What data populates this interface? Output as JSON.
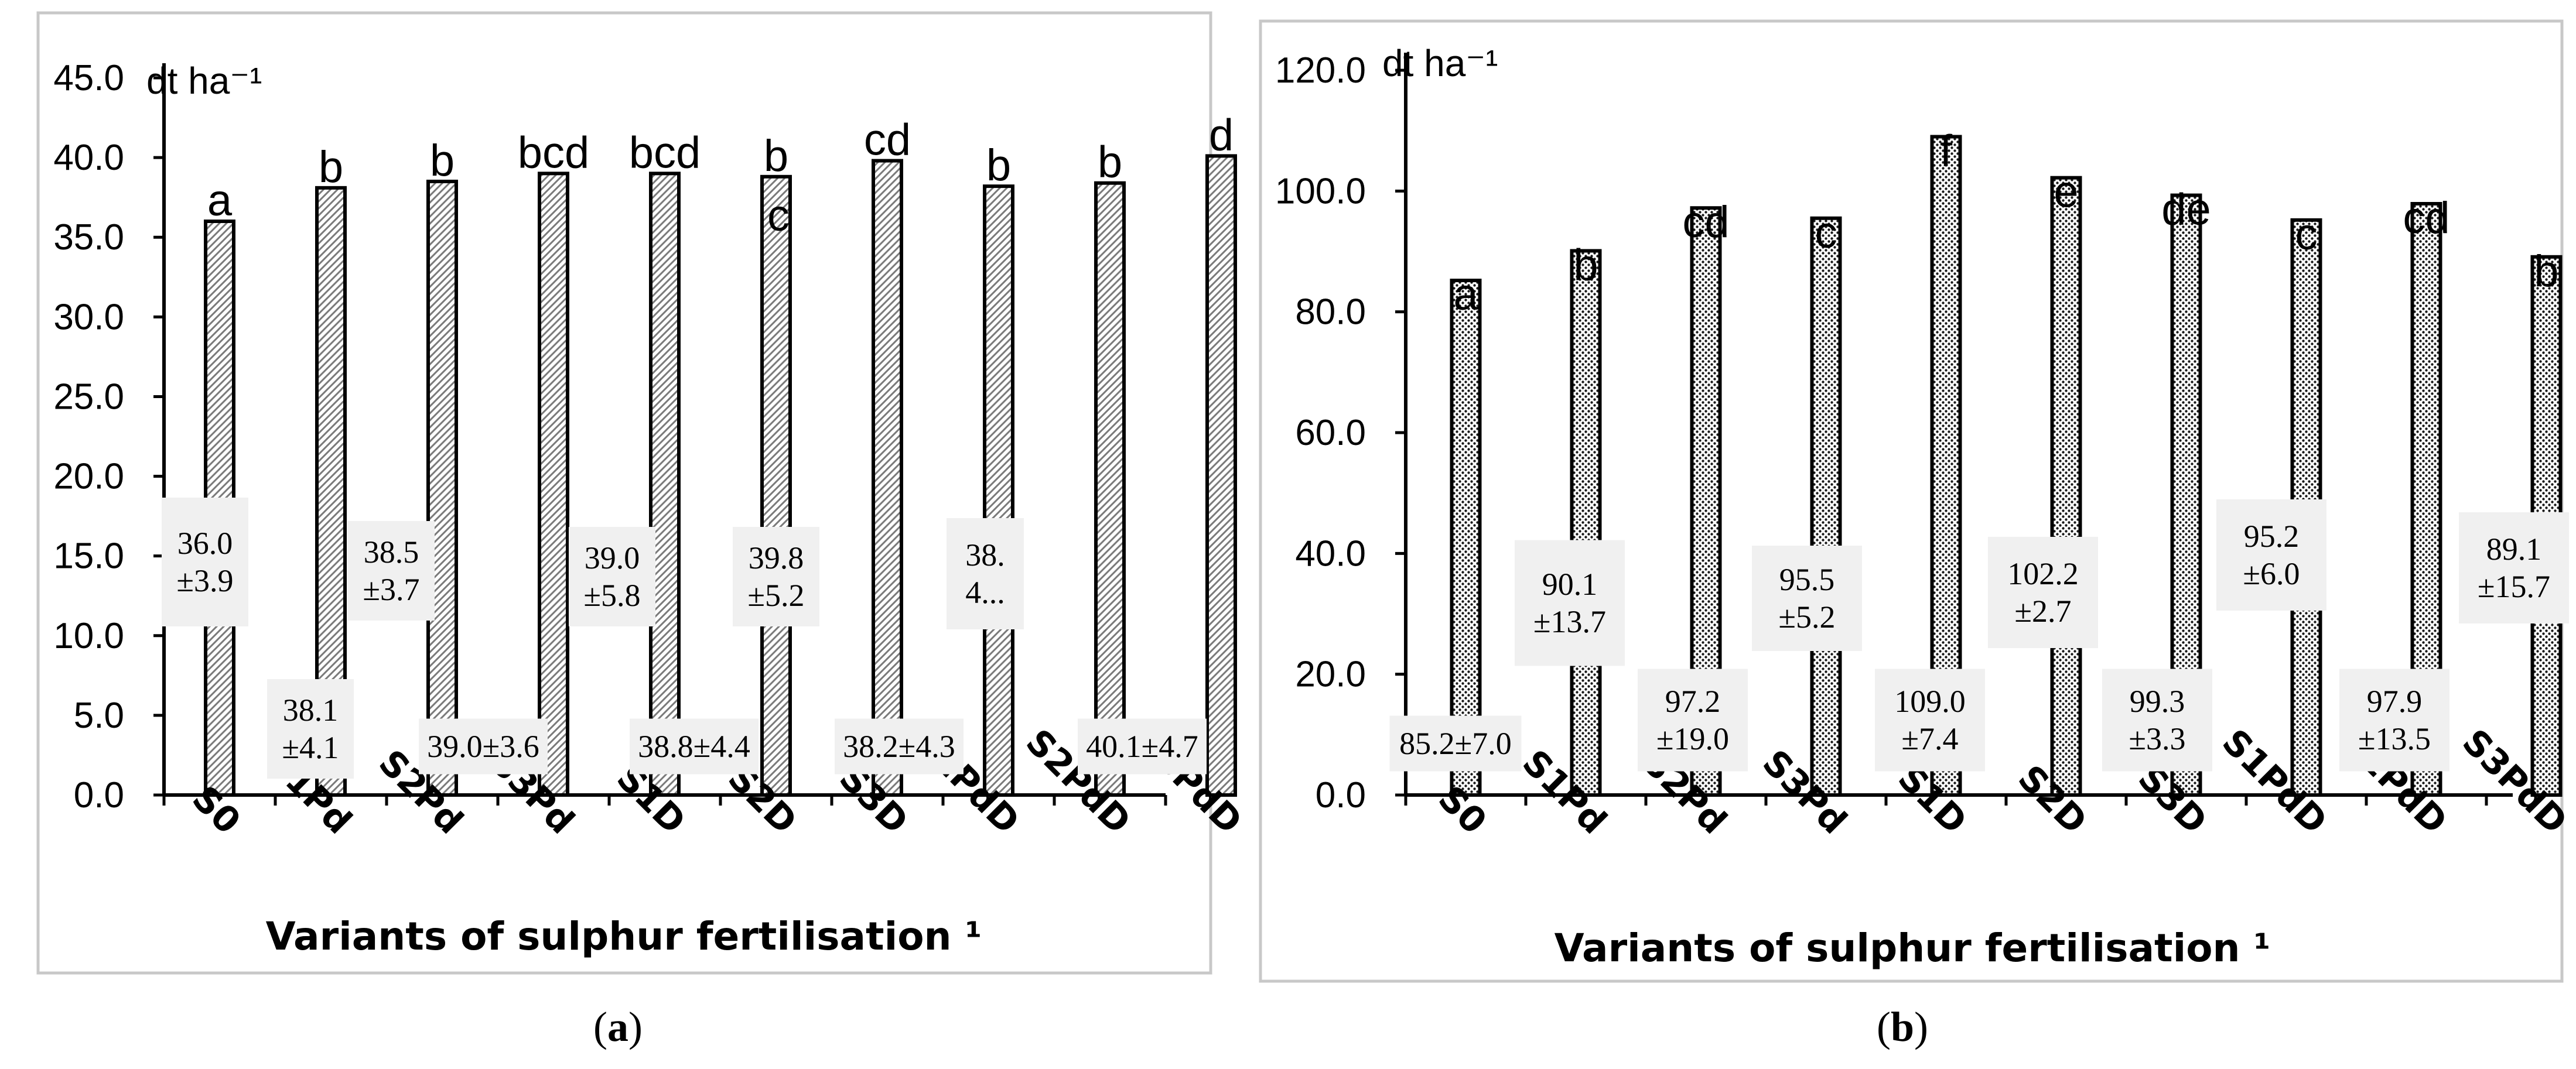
{
  "chart_data": [
    {
      "type": "bar",
      "panel": "a",
      "caption": "(a)",
      "caption_letter": "a",
      "unit": "dt ha⁻¹",
      "xlabel": "Variants of sulphur fertilisation ¹",
      "ylabel": "",
      "ylim": [
        0,
        45
      ],
      "yticks": [
        "0.0",
        "5.0",
        "10.0",
        "15.0",
        "20.0",
        "25.0",
        "30.0",
        "35.0",
        "40.0",
        "45.0"
      ],
      "categories": [
        "S0",
        "S1Pd",
        "S2Pd",
        "S3Pd",
        "S1D",
        "S2D",
        "S3D",
        "S1PdD",
        "S2PdD",
        "S3PdD"
      ],
      "values": [
        36.0,
        38.1,
        38.5,
        39.0,
        39.0,
        38.8,
        39.8,
        38.2,
        38.4,
        40.1
      ],
      "significance_letters": [
        "a",
        "b",
        "b",
        "bcd",
        "bcd",
        "b",
        "cd",
        "b",
        "b",
        "d"
      ],
      "extra_letter": "c",
      "data_labels": [
        [
          "36.0",
          "±3.9"
        ],
        [
          "38.1",
          "±4.1"
        ],
        [
          "38.5",
          "±3.7"
        ],
        [
          "39.0±3.6"
        ],
        [
          "39.0",
          "±5.8"
        ],
        [
          "38.8±4.4"
        ],
        [
          "39.8",
          "±5.2"
        ],
        [
          "38.2±4.3"
        ],
        [
          "38.",
          "4..."
        ],
        [
          "40.1±4.7"
        ]
      ]
    },
    {
      "type": "bar",
      "panel": "b",
      "caption": "(b)",
      "caption_letter": "b",
      "unit": "dt ha⁻¹",
      "xlabel": "Variants of sulphur fertilisation ¹",
      "ylabel": "",
      "ylim": [
        0,
        120
      ],
      "yticks": [
        "0.0",
        "20.0",
        "40.0",
        "60.0",
        "80.0",
        "100.0",
        "120.0"
      ],
      "categories": [
        "S0",
        "S1Pd",
        "S2Pd",
        "S3Pd",
        "S1D",
        "S2D",
        "S3D",
        "S1PdD",
        "S2PdD",
        "S3PdD"
      ],
      "values": [
        85.2,
        90.1,
        97.2,
        95.5,
        109.0,
        102.2,
        99.3,
        95.2,
        97.9,
        89.1
      ],
      "significance_letters": [
        "a",
        "b",
        "cd",
        "c",
        "f",
        "e",
        "de",
        "c",
        "cd",
        "b"
      ],
      "data_labels": [
        [
          "85.2±7.0"
        ],
        [
          "90.1",
          "±13.7"
        ],
        [
          "97.2",
          "±19.0"
        ],
        [
          "95.5",
          "±5.2"
        ],
        [
          "109.0",
          "±7.4"
        ],
        [
          "102.2",
          "±2.7"
        ],
        [
          "99.3",
          "±3.3"
        ],
        [
          "95.2",
          "±6.0"
        ],
        [
          "97.9",
          "±13.5"
        ],
        [
          "89.1",
          "±15.7"
        ]
      ]
    }
  ]
}
